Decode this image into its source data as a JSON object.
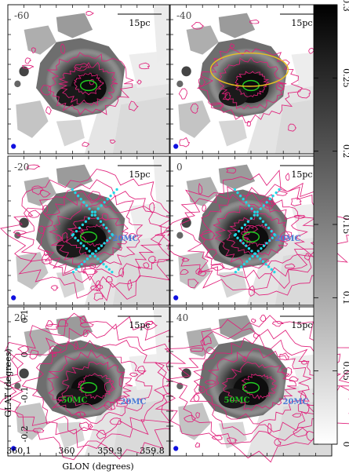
{
  "figure": {
    "panels": [
      {
        "velocity_label": "-60",
        "scale_label": "15pc",
        "has_cyan_lines": false,
        "has_yellow_ellipse": false,
        "labels": []
      },
      {
        "velocity_label": "-40",
        "scale_label": "15pc",
        "has_cyan_lines": false,
        "has_yellow_ellipse": true,
        "labels": []
      },
      {
        "velocity_label": "-20",
        "scale_label": "15pc",
        "has_cyan_lines": true,
        "has_yellow_ellipse": false,
        "labels": [
          {
            "text": "20MC",
            "color": "#4a7bd6"
          }
        ]
      },
      {
        "velocity_label": "0",
        "scale_label": "15pc",
        "has_cyan_lines": true,
        "has_yellow_ellipse": false,
        "labels": [
          {
            "text": "20MC",
            "color": "#4a7bd6"
          }
        ]
      },
      {
        "velocity_label": "20",
        "scale_label": "15pc",
        "has_cyan_lines": false,
        "has_yellow_ellipse": false,
        "labels": [
          {
            "text": "50MC",
            "color": "#22bb22"
          },
          {
            "text": "20MC",
            "color": "#4a7bd6"
          }
        ]
      },
      {
        "velocity_label": "40",
        "scale_label": "15pc",
        "has_cyan_lines": false,
        "has_yellow_ellipse": false,
        "labels": [
          {
            "text": "50MC",
            "color": "#22bb22"
          },
          {
            "text": "20MC",
            "color": "#4a7bd6"
          }
        ]
      }
    ],
    "x_axis": {
      "label": "GLON (degrees)",
      "ticks": [
        "360.1",
        "360",
        "359.9",
        "359.8"
      ]
    },
    "y_axis": {
      "label": "GLAT (degrees)",
      "ticks": [
        "0.1",
        "0",
        "-0.1",
        "-0.2"
      ]
    },
    "colorbar": {
      "ticks": [
        "0.3",
        "0.25",
        "0.2",
        "0.15",
        "0.1",
        "0.05",
        "0"
      ]
    },
    "colors": {
      "contour": "#e0207a",
      "cyan": "#22d8e6",
      "yellow": "#e8c020",
      "beam": "#1010e0",
      "green": "#22cc22"
    }
  }
}
